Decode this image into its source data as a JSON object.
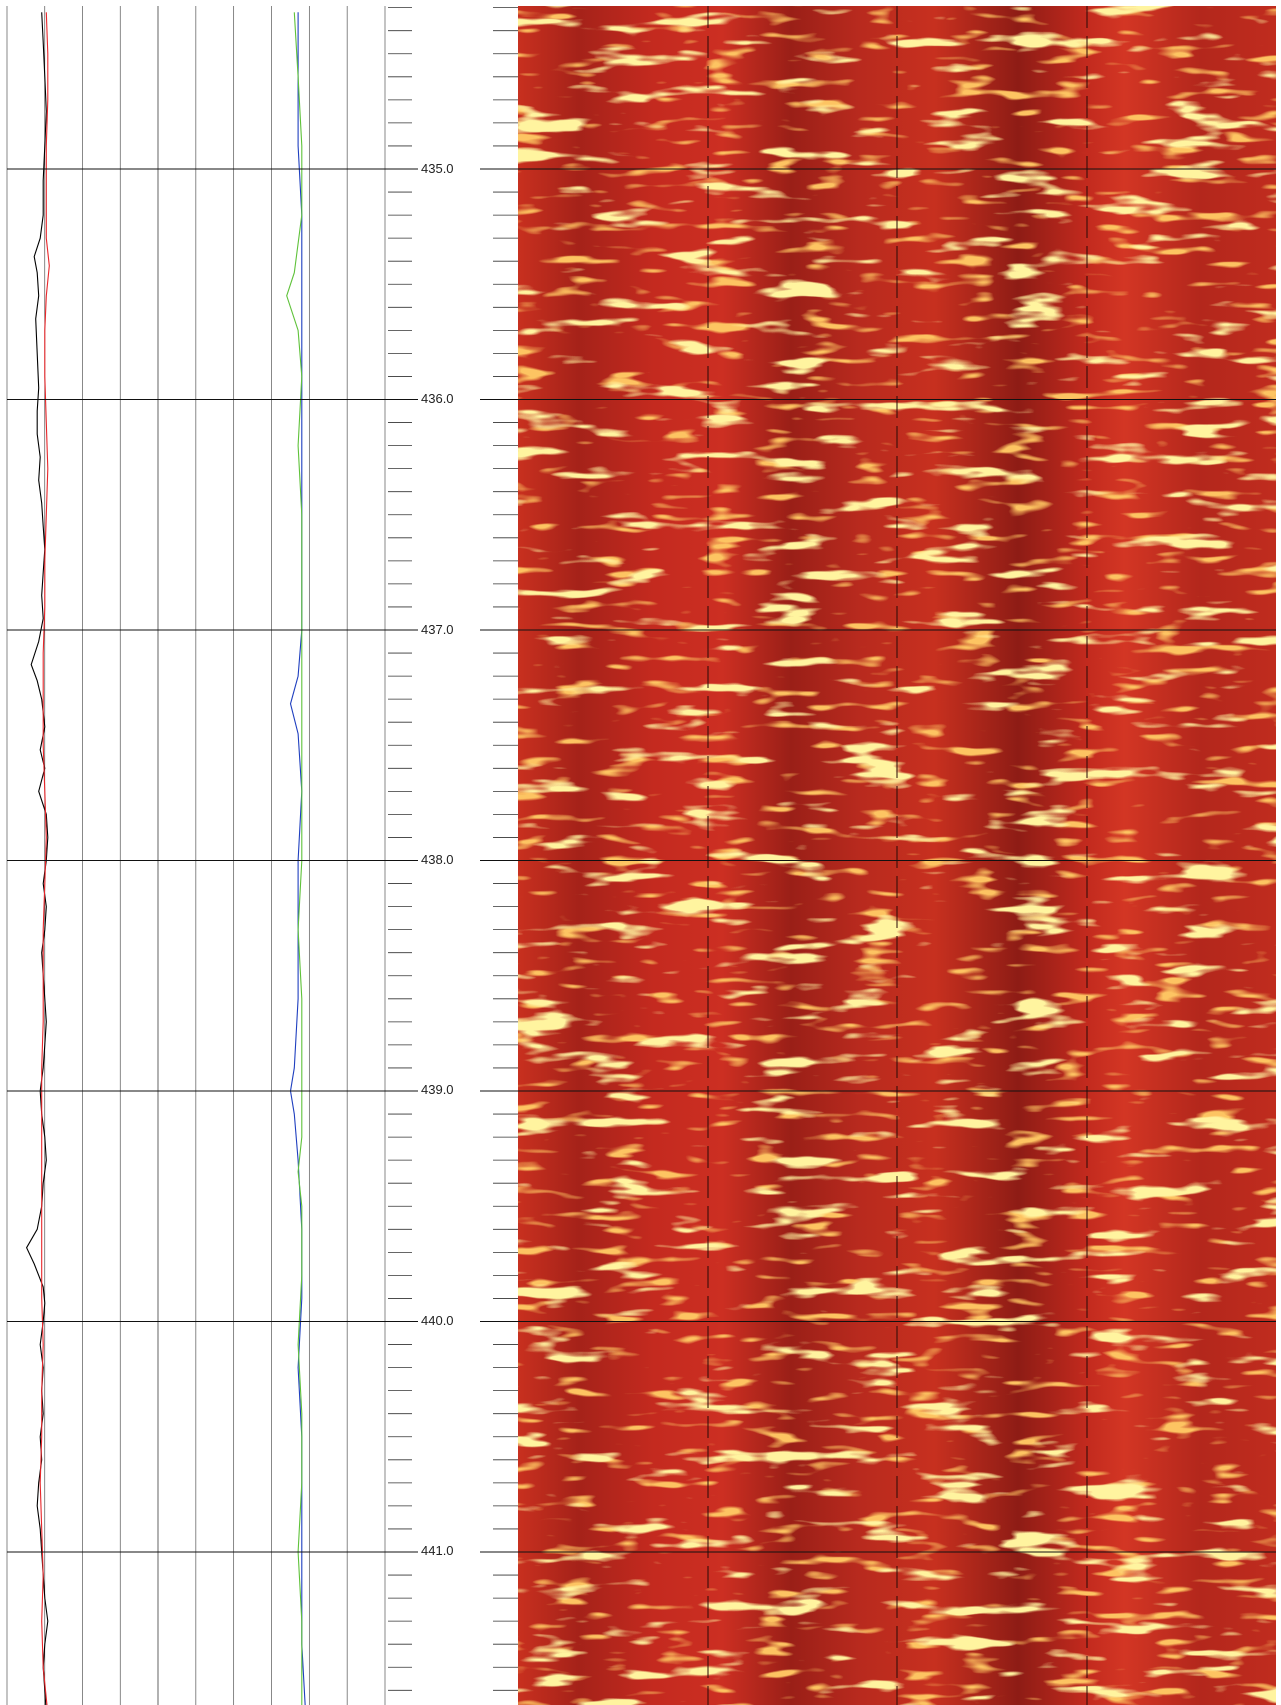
{
  "depth_labels": [
    "435.0",
    "436.0",
    "437.0",
    "438.0",
    "439.0",
    "440.0",
    "441.0"
  ],
  "colors": {
    "curve_black": "#000000",
    "curve_red": "#e8262a",
    "curve_blue": "#1f3fbf",
    "curve_green": "#5fc23a",
    "image_base": "#c0281e",
    "image_dark": "#8c1c15",
    "image_bright": "#fff07a",
    "image_orange": "#f6a52a"
  },
  "chart_data": {
    "type": "line",
    "title": "",
    "xlabel": "",
    "ylabel": "",
    "y_axis": "depth",
    "ylim": [
      434.3,
      441.7
    ],
    "major_ticks": [
      435.0,
      436.0,
      437.0,
      438.0,
      439.0,
      440.0,
      441.0
    ],
    "minor_tick_step": 0.1,
    "grid": true,
    "tracks": [
      {
        "name": "",
        "type": "line",
        "series": [
          {
            "color": "#000000",
            "points": [
              [
                434.32,
                0.23
              ],
              [
                434.45,
                0.24
              ],
              [
                434.6,
                0.25
              ],
              [
                434.75,
                0.26
              ],
              [
                434.9,
                0.25
              ],
              [
                435.05,
                0.24
              ],
              [
                435.2,
                0.24
              ],
              [
                435.3,
                0.22
              ],
              [
                435.38,
                0.18
              ],
              [
                435.45,
                0.2
              ],
              [
                435.55,
                0.21
              ],
              [
                435.65,
                0.19
              ],
              [
                435.8,
                0.2
              ],
              [
                435.95,
                0.21
              ],
              [
                436.05,
                0.2
              ],
              [
                436.15,
                0.2
              ],
              [
                436.25,
                0.22
              ],
              [
                436.35,
                0.21
              ],
              [
                436.45,
                0.23
              ],
              [
                436.55,
                0.24
              ],
              [
                436.65,
                0.25
              ],
              [
                436.75,
                0.24
              ],
              [
                436.85,
                0.23
              ],
              [
                436.95,
                0.24
              ],
              [
                437.05,
                0.21
              ],
              [
                437.15,
                0.16
              ],
              [
                437.22,
                0.2
              ],
              [
                437.3,
                0.23
              ],
              [
                437.42,
                0.25
              ],
              [
                437.52,
                0.22
              ],
              [
                437.6,
                0.25
              ],
              [
                437.7,
                0.21
              ],
              [
                437.8,
                0.26
              ],
              [
                437.9,
                0.27
              ],
              [
                438.0,
                0.26
              ],
              [
                438.1,
                0.24
              ],
              [
                438.2,
                0.26
              ],
              [
                438.3,
                0.25
              ],
              [
                438.4,
                0.23
              ],
              [
                438.5,
                0.24
              ],
              [
                438.6,
                0.25
              ],
              [
                438.7,
                0.26
              ],
              [
                438.8,
                0.25
              ],
              [
                438.9,
                0.24
              ],
              [
                439.0,
                0.22
              ],
              [
                439.1,
                0.23
              ],
              [
                439.2,
                0.25
              ],
              [
                439.3,
                0.26
              ],
              [
                439.4,
                0.24
              ],
              [
                439.5,
                0.23
              ],
              [
                439.6,
                0.2
              ],
              [
                439.68,
                0.13
              ],
              [
                439.75,
                0.18
              ],
              [
                439.85,
                0.24
              ],
              [
                439.92,
                0.25
              ],
              [
                440.0,
                0.24
              ],
              [
                440.1,
                0.22
              ],
              [
                440.2,
                0.24
              ],
              [
                440.3,
                0.23
              ],
              [
                440.4,
                0.24
              ],
              [
                440.5,
                0.22
              ],
              [
                440.6,
                0.23
              ],
              [
                440.7,
                0.21
              ],
              [
                440.8,
                0.2
              ],
              [
                440.9,
                0.22
              ],
              [
                441.0,
                0.23
              ],
              [
                441.1,
                0.24
              ],
              [
                441.2,
                0.25
              ],
              [
                441.3,
                0.27
              ],
              [
                441.4,
                0.25
              ],
              [
                441.5,
                0.24
              ],
              [
                441.6,
                0.25
              ],
              [
                441.7,
                0.26
              ]
            ]
          },
          {
            "color": "#e8262a",
            "points": [
              [
                434.32,
                0.26
              ],
              [
                434.5,
                0.27
              ],
              [
                434.7,
                0.27
              ],
              [
                434.9,
                0.26
              ],
              [
                435.1,
                0.26
              ],
              [
                435.3,
                0.26
              ],
              [
                435.42,
                0.28
              ],
              [
                435.55,
                0.26
              ],
              [
                435.7,
                0.25
              ],
              [
                435.9,
                0.25
              ],
              [
                436.1,
                0.26
              ],
              [
                436.3,
                0.27
              ],
              [
                436.5,
                0.26
              ],
              [
                436.7,
                0.25
              ],
              [
                436.9,
                0.25
              ],
              [
                437.1,
                0.24
              ],
              [
                437.3,
                0.24
              ],
              [
                437.5,
                0.24
              ],
              [
                437.7,
                0.25
              ],
              [
                437.9,
                0.26
              ],
              [
                438.1,
                0.25
              ],
              [
                438.3,
                0.24
              ],
              [
                438.5,
                0.24
              ],
              [
                438.7,
                0.24
              ],
              [
                438.9,
                0.23
              ],
              [
                439.1,
                0.23
              ],
              [
                439.3,
                0.23
              ],
              [
                439.5,
                0.23
              ],
              [
                439.7,
                0.23
              ],
              [
                439.9,
                0.23
              ],
              [
                440.1,
                0.24
              ],
              [
                440.3,
                0.23
              ],
              [
                440.5,
                0.23
              ],
              [
                440.7,
                0.22
              ],
              [
                440.9,
                0.23
              ],
              [
                441.1,
                0.24
              ],
              [
                441.3,
                0.23
              ],
              [
                441.5,
                0.24
              ],
              [
                441.7,
                0.27
              ]
            ]
          }
        ]
      },
      {
        "name": "",
        "type": "line",
        "series": [
          {
            "color": "#1f3fbf",
            "points": [
              [
                434.32,
                0.77
              ],
              [
                434.6,
                0.77
              ],
              [
                434.9,
                0.77
              ],
              [
                435.2,
                0.78
              ],
              [
                435.5,
                0.78
              ],
              [
                435.8,
                0.78
              ],
              [
                436.1,
                0.78
              ],
              [
                436.4,
                0.78
              ],
              [
                436.7,
                0.78
              ],
              [
                437.0,
                0.78
              ],
              [
                437.2,
                0.77
              ],
              [
                437.32,
                0.75
              ],
              [
                437.45,
                0.77
              ],
              [
                437.7,
                0.78
              ],
              [
                438.0,
                0.77
              ],
              [
                438.3,
                0.77
              ],
              [
                438.6,
                0.77
              ],
              [
                438.9,
                0.76
              ],
              [
                439.0,
                0.75
              ],
              [
                439.1,
                0.76
              ],
              [
                439.3,
                0.77
              ],
              [
                439.6,
                0.78
              ],
              [
                439.9,
                0.78
              ],
              [
                440.2,
                0.77
              ],
              [
                440.5,
                0.78
              ],
              [
                440.8,
                0.78
              ],
              [
                441.1,
                0.78
              ],
              [
                441.4,
                0.78
              ],
              [
                441.7,
                0.79
              ]
            ]
          },
          {
            "color": "#5fc23a",
            "points": [
              [
                434.32,
                0.76
              ],
              [
                434.6,
                0.77
              ],
              [
                434.9,
                0.78
              ],
              [
                435.2,
                0.78
              ],
              [
                435.45,
                0.76
              ],
              [
                435.55,
                0.74
              ],
              [
                435.7,
                0.77
              ],
              [
                435.9,
                0.78
              ],
              [
                436.2,
                0.77
              ],
              [
                436.5,
                0.78
              ],
              [
                436.8,
                0.78
              ],
              [
                437.1,
                0.78
              ],
              [
                437.4,
                0.78
              ],
              [
                437.7,
                0.78
              ],
              [
                438.0,
                0.78
              ],
              [
                438.3,
                0.77
              ],
              [
                438.6,
                0.78
              ],
              [
                438.9,
                0.78
              ],
              [
                439.2,
                0.78
              ],
              [
                439.35,
                0.77
              ],
              [
                439.5,
                0.78
              ],
              [
                439.8,
                0.78
              ],
              [
                440.1,
                0.77
              ],
              [
                440.4,
                0.78
              ],
              [
                440.7,
                0.78
              ],
              [
                441.0,
                0.77
              ],
              [
                441.3,
                0.78
              ],
              [
                441.6,
                0.78
              ],
              [
                441.7,
                0.78
              ]
            ]
          }
        ]
      }
    ]
  }
}
